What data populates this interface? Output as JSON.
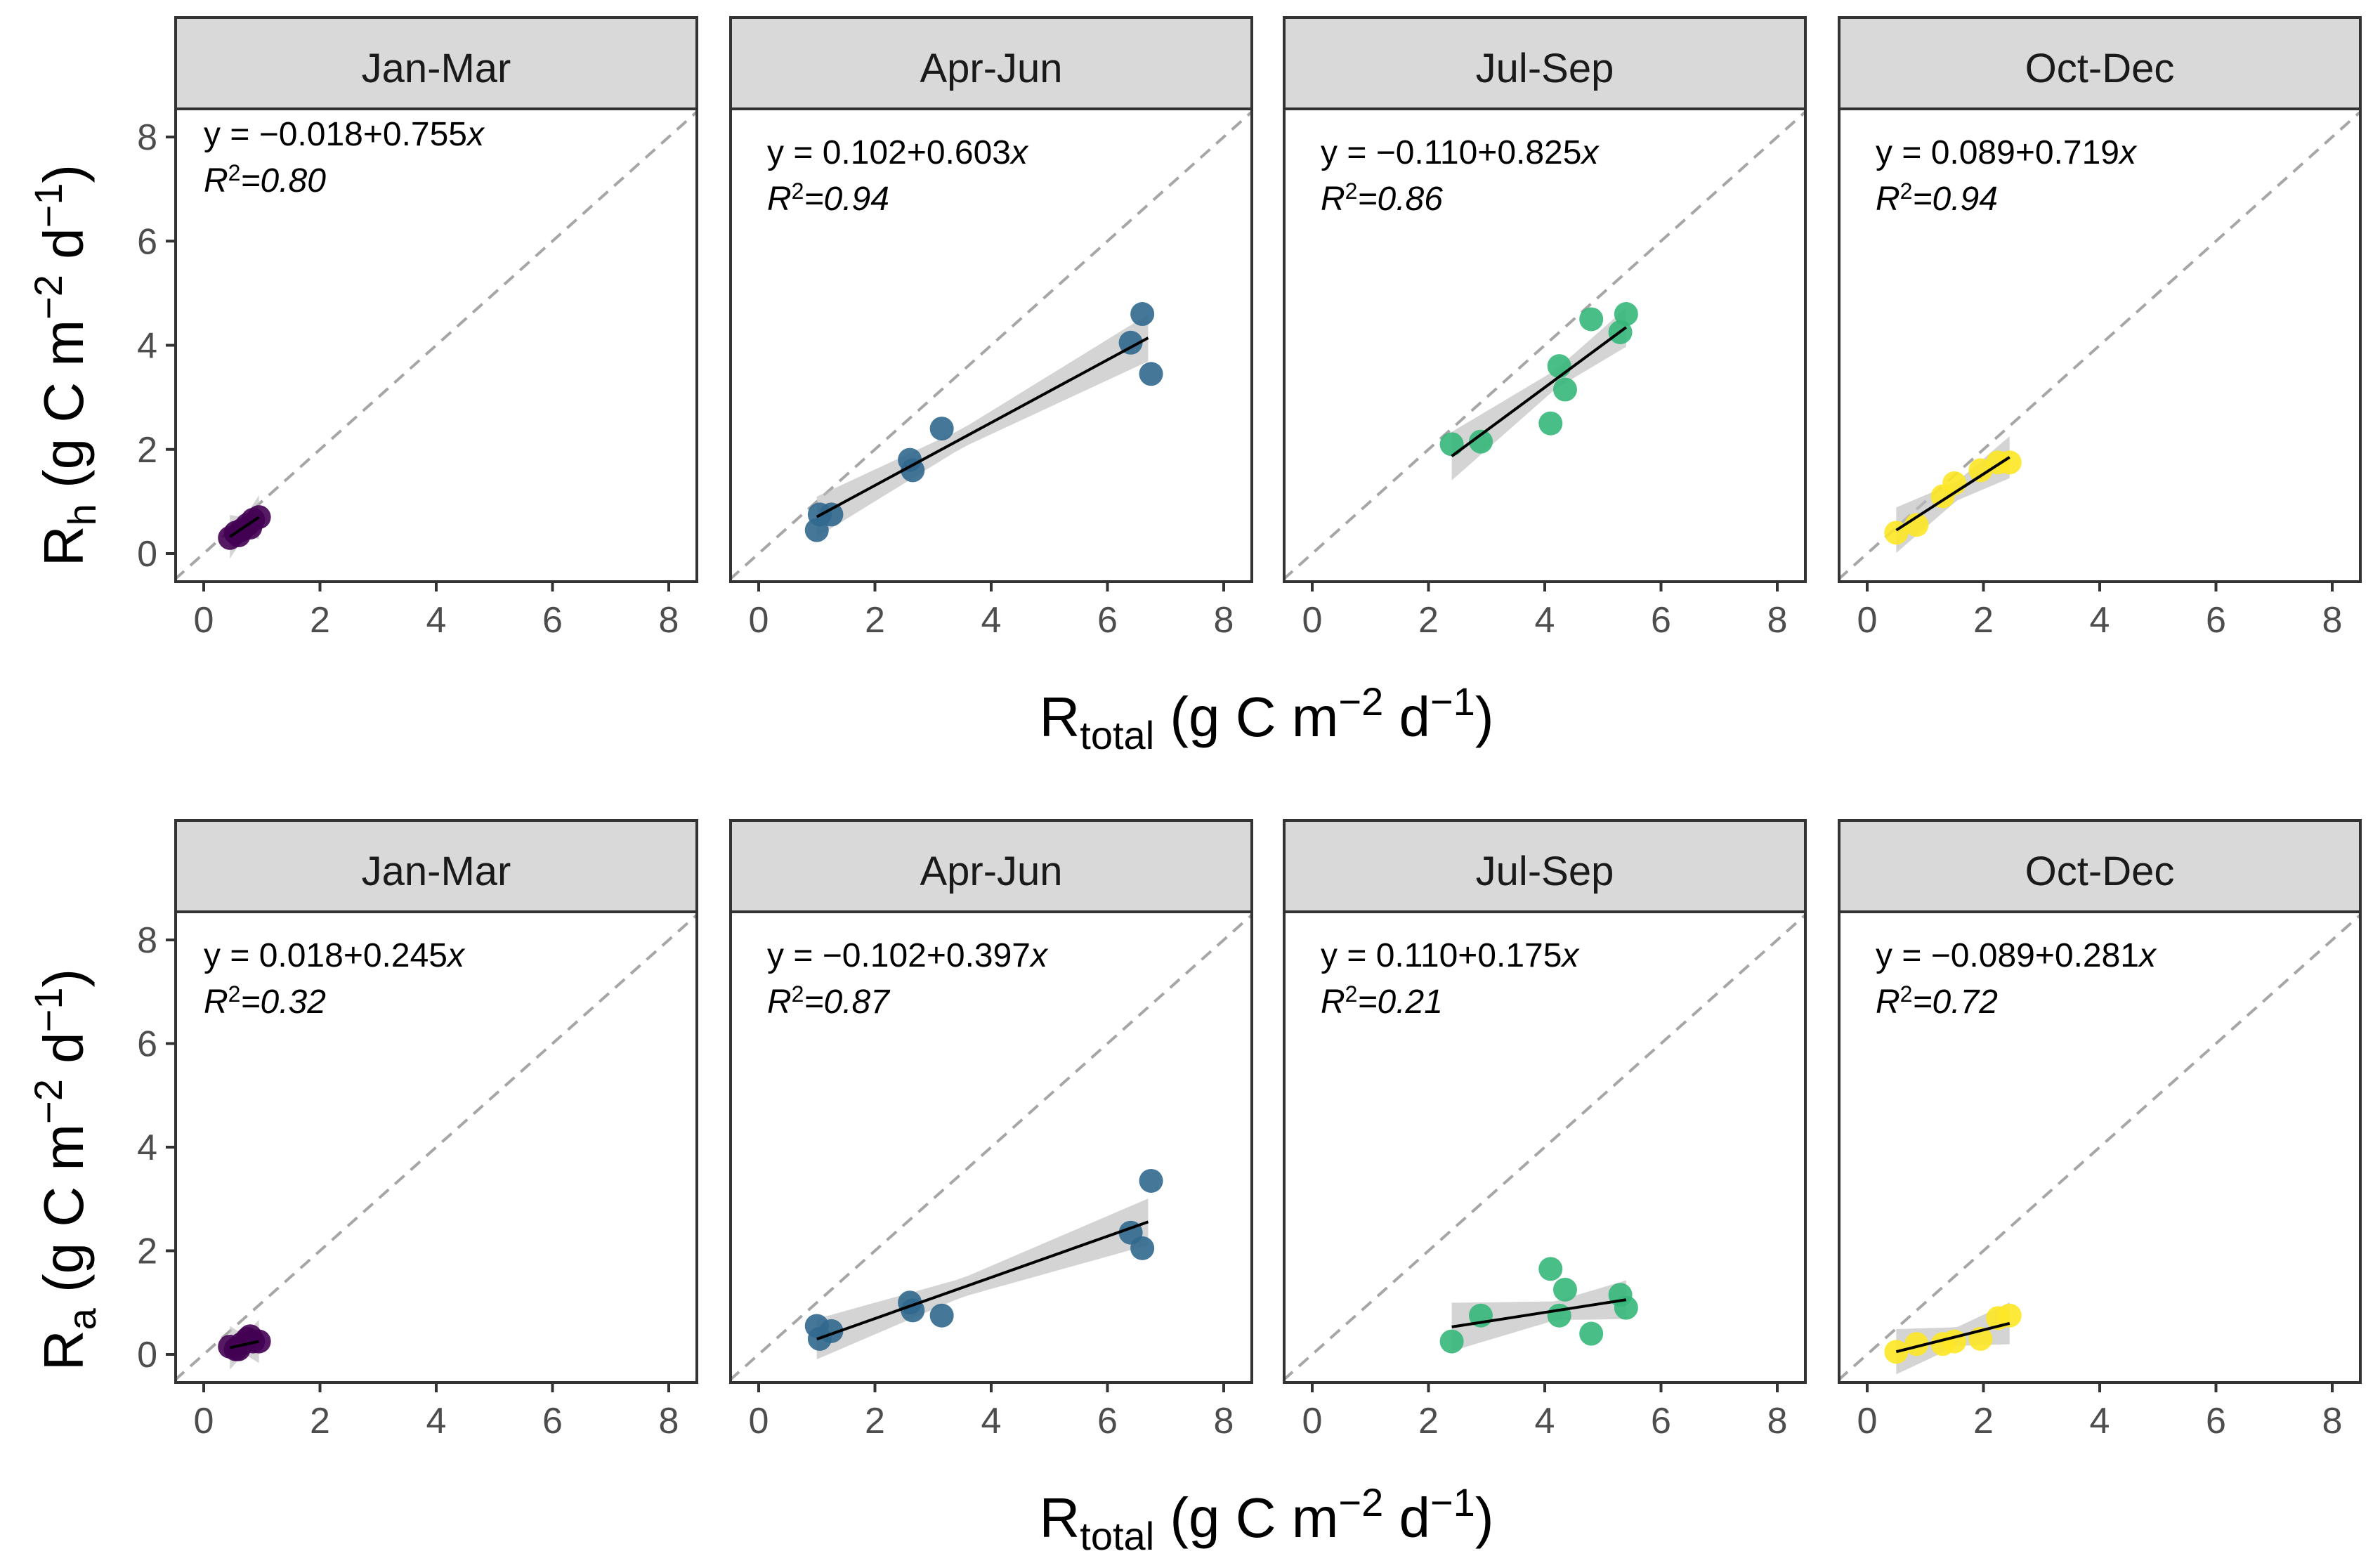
{
  "figure": {
    "rows": [
      {
        "y_label_main": "R",
        "y_label_sub": "h",
        "y_label_unit": " (g C m",
        "y_label_exp1": "−2",
        "y_label_unit2": " d",
        "y_label_exp2": "−1",
        "y_label_close": ")",
        "x_label_main": "R",
        "x_label_sub": "total",
        "x_label_unit": " (g C m",
        "x_label_exp1": "−2",
        "x_label_unit2": " d",
        "x_label_exp2": "−1",
        "x_label_close": ")"
      },
      {
        "y_label_main": "R",
        "y_label_sub": "a",
        "y_label_unit": " (g C m",
        "y_label_exp1": "−2",
        "y_label_unit2": " d",
        "y_label_exp2": "−1",
        "y_label_close": ")",
        "x_label_main": "R",
        "x_label_sub": "total",
        "x_label_unit": " (g C m",
        "x_label_exp1": "−2",
        "x_label_unit2": " d",
        "x_label_exp2": "−1",
        "x_label_close": ")"
      }
    ]
  },
  "chart_data": [
    {
      "type": "scatter",
      "panel": "Jan-Mar",
      "row": "Rh",
      "color": "#440154",
      "equation_prefix": "y = −0.018+0.755",
      "equation_var": "x",
      "r2_label": "2",
      "r2_value": "=0.80",
      "intercept": -0.018,
      "slope": 0.755,
      "fit_x_range": [
        0.45,
        0.95
      ],
      "x": [
        0.45,
        0.55,
        0.65,
        0.75,
        0.85,
        0.95,
        0.8,
        0.6
      ],
      "y": [
        0.3,
        0.4,
        0.45,
        0.55,
        0.65,
        0.7,
        0.5,
        0.35
      ],
      "xlim": [
        0,
        8
      ],
      "ylim": [
        0,
        8
      ],
      "ticks": [
        0,
        2,
        4,
        6,
        8
      ]
    },
    {
      "type": "scatter",
      "panel": "Apr-Jun",
      "row": "Rh",
      "color": "#31688e",
      "equation_prefix": "y = 0.102+0.603",
      "equation_var": "x",
      "r2_label": "2",
      "r2_value": "=0.94",
      "intercept": 0.102,
      "slope": 0.603,
      "fit_x_range": [
        1.0,
        6.7
      ],
      "x": [
        1.0,
        1.05,
        1.25,
        2.6,
        2.65,
        3.15,
        6.4,
        6.6,
        6.75
      ],
      "y": [
        0.45,
        0.75,
        0.75,
        1.8,
        1.6,
        2.4,
        4.05,
        4.6,
        3.45
      ],
      "xlim": [
        0,
        8
      ],
      "ylim": [
        0,
        8
      ],
      "ticks": [
        0,
        2,
        4,
        6,
        8
      ]
    },
    {
      "type": "scatter",
      "panel": "Jul-Sep",
      "row": "Rh",
      "color": "#35b779",
      "equation_prefix": "y = −0.110+0.825",
      "equation_var": "x",
      "r2_label": "2",
      "r2_value": "=0.86",
      "intercept": -0.11,
      "slope": 0.825,
      "fit_x_range": [
        2.4,
        5.4
      ],
      "x": [
        2.4,
        2.9,
        4.1,
        4.25,
        4.35,
        4.8,
        5.3,
        5.4
      ],
      "y": [
        2.1,
        2.15,
        2.5,
        3.6,
        3.15,
        4.5,
        4.25,
        4.6
      ],
      "xlim": [
        0,
        8
      ],
      "ylim": [
        0,
        8
      ],
      "ticks": [
        0,
        2,
        4,
        6,
        8
      ]
    },
    {
      "type": "scatter",
      "panel": "Oct-Dec",
      "row": "Rh",
      "color": "#fde725",
      "equation_prefix": "y = 0.089+0.719",
      "equation_var": "x",
      "r2_label": "2",
      "r2_value": "=0.94",
      "intercept": 0.089,
      "slope": 0.719,
      "fit_x_range": [
        0.5,
        2.45
      ],
      "x": [
        0.5,
        0.85,
        1.3,
        1.5,
        1.95,
        2.25,
        2.45
      ],
      "y": [
        0.4,
        0.55,
        1.1,
        1.35,
        1.6,
        1.75,
        1.75
      ],
      "xlim": [
        0,
        8
      ],
      "ylim": [
        0,
        8
      ],
      "ticks": [
        0,
        2,
        4,
        6,
        8
      ]
    },
    {
      "type": "scatter",
      "panel": "Jan-Mar",
      "row": "Ra",
      "color": "#440154",
      "equation_prefix": "y = 0.018+0.245",
      "equation_var": "x",
      "r2_label": "2",
      "r2_value": "=0.32",
      "intercept": 0.018,
      "slope": 0.245,
      "fit_x_range": [
        0.45,
        0.95
      ],
      "x": [
        0.45,
        0.55,
        0.65,
        0.75,
        0.85,
        0.95,
        0.8,
        0.6
      ],
      "y": [
        0.15,
        0.1,
        0.2,
        0.3,
        0.25,
        0.25,
        0.35,
        0.1
      ],
      "xlim": [
        0,
        8
      ],
      "ylim": [
        0,
        8
      ],
      "ticks": [
        0,
        2,
        4,
        6,
        8
      ]
    },
    {
      "type": "scatter",
      "panel": "Apr-Jun",
      "row": "Ra",
      "color": "#31688e",
      "equation_prefix": "y = −0.102+0.397",
      "equation_var": "x",
      "r2_label": "2",
      "r2_value": "=0.87",
      "intercept": -0.102,
      "slope": 0.397,
      "fit_x_range": [
        1.0,
        6.7
      ],
      "x": [
        1.0,
        1.05,
        1.25,
        2.6,
        2.65,
        3.15,
        6.4,
        6.6,
        6.75
      ],
      "y": [
        0.55,
        0.3,
        0.45,
        1.0,
        0.85,
        0.75,
        2.35,
        2.05,
        3.35
      ],
      "xlim": [
        0,
        8
      ],
      "ylim": [
        0,
        8
      ],
      "ticks": [
        0,
        2,
        4,
        6,
        8
      ]
    },
    {
      "type": "scatter",
      "panel": "Jul-Sep",
      "row": "Ra",
      "color": "#35b779",
      "equation_prefix": "y = 0.110+0.175",
      "equation_var": "x",
      "r2_label": "2",
      "r2_value": "=0.21",
      "intercept": 0.11,
      "slope": 0.175,
      "fit_x_range": [
        2.4,
        5.4
      ],
      "x": [
        2.4,
        2.9,
        4.1,
        4.25,
        4.35,
        4.8,
        5.3,
        5.4
      ],
      "y": [
        0.25,
        0.75,
        1.65,
        0.75,
        1.25,
        0.4,
        1.15,
        0.9
      ],
      "xlim": [
        0,
        8
      ],
      "ylim": [
        0,
        8
      ],
      "ticks": [
        0,
        2,
        4,
        6,
        8
      ]
    },
    {
      "type": "scatter",
      "panel": "Oct-Dec",
      "row": "Ra",
      "color": "#fde725",
      "equation_prefix": "y = −0.089+0.281",
      "equation_var": "x",
      "r2_label": "2",
      "r2_value": "=0.72",
      "intercept": -0.089,
      "slope": 0.281,
      "fit_x_range": [
        0.5,
        2.45
      ],
      "x": [
        0.5,
        0.85,
        1.3,
        1.5,
        1.95,
        2.25,
        2.45
      ],
      "y": [
        0.05,
        0.2,
        0.2,
        0.25,
        0.3,
        0.7,
        0.75
      ],
      "xlim": [
        0,
        8
      ],
      "ylim": [
        0,
        8
      ],
      "ticks": [
        0,
        2,
        4,
        6,
        8
      ]
    }
  ]
}
